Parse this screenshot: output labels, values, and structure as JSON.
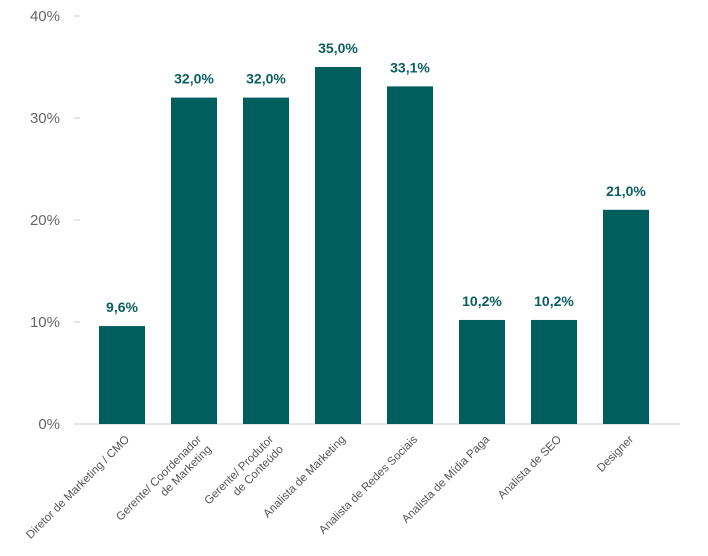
{
  "chart_data": {
    "type": "bar",
    "categories": [
      [
        "Diretor de Marketing / CMO"
      ],
      [
        "Gerente/ Coordenador",
        "de Marketing"
      ],
      [
        "Gerente/ Produtor",
        "de Conteúdo"
      ],
      [
        "Analista de Marketing"
      ],
      [
        "Analista de Redes Sociais"
      ],
      [
        "Analista de Mídia Paga"
      ],
      [
        "Analista de SEO"
      ],
      [
        "Designer"
      ]
    ],
    "values": [
      9.6,
      32.0,
      32.0,
      35.0,
      33.1,
      10.2,
      10.2,
      21.0
    ],
    "value_labels": [
      "9,6%",
      "32,0%",
      "32,0%",
      "35,0%",
      "33,1%",
      "10,2%",
      "10,2%",
      "21,0%"
    ],
    "y_ticks": [
      0,
      10,
      20,
      30,
      40
    ],
    "y_tick_labels": [
      "0%",
      "10%",
      "20%",
      "30%",
      "40%"
    ],
    "ylim": [
      0,
      40
    ],
    "grid": false,
    "legend": "none",
    "bar_color": "#005e5c",
    "label_color": "#0b5e5c",
    "axis_color": "#cccccc"
  }
}
